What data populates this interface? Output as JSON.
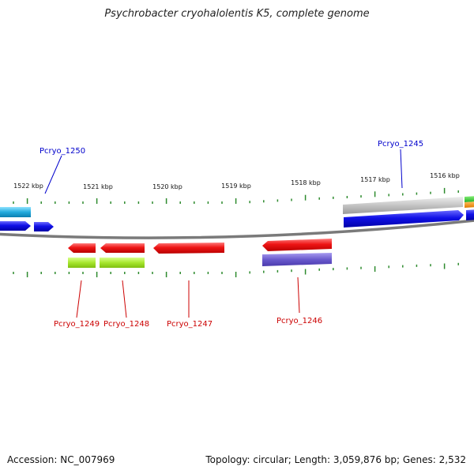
{
  "title": "Psychrobacter cryohalolentis K5, complete genome",
  "footer": {
    "accession": "Accession: NC_007969",
    "summary": "Topology: circular; Length: 3,059,876 bp; Genes: 2,532"
  },
  "ruler_labels": [
    "1522 kbp",
    "1521 kbp",
    "1520 kbp",
    "1519 kbp",
    "1518 kbp",
    "1517 kbp",
    "1516 kbp"
  ],
  "gene_labels": [
    {
      "text": "Pcryo_1250",
      "strand": "forward",
      "color": "#0000cc"
    },
    {
      "text": "Pcryo_1245",
      "strand": "forward",
      "color": "#0000cc"
    },
    {
      "text": "Pcryo_1249",
      "strand": "reverse",
      "color": "#cc0000"
    },
    {
      "text": "Pcryo_1248",
      "strand": "reverse",
      "color": "#cc0000"
    },
    {
      "text": "Pcryo_1247",
      "strand": "reverse",
      "color": "#cc0000"
    },
    {
      "text": "Pcryo_1246",
      "strand": "reverse",
      "color": "#cc0000"
    }
  ],
  "colors": {
    "backbone": "#7a7a7a",
    "tick": "#2e8b2e",
    "forward_gene": "#1010e0",
    "reverse_gene": "#e81010",
    "cds_cyan": "#22aadd",
    "cds_lime": "#a6e62e",
    "cds_purple": "#6a5acd",
    "cds_gray": "#bdbdbd",
    "forward_label": "#0000cc",
    "reverse_label": "#cc0000"
  }
}
